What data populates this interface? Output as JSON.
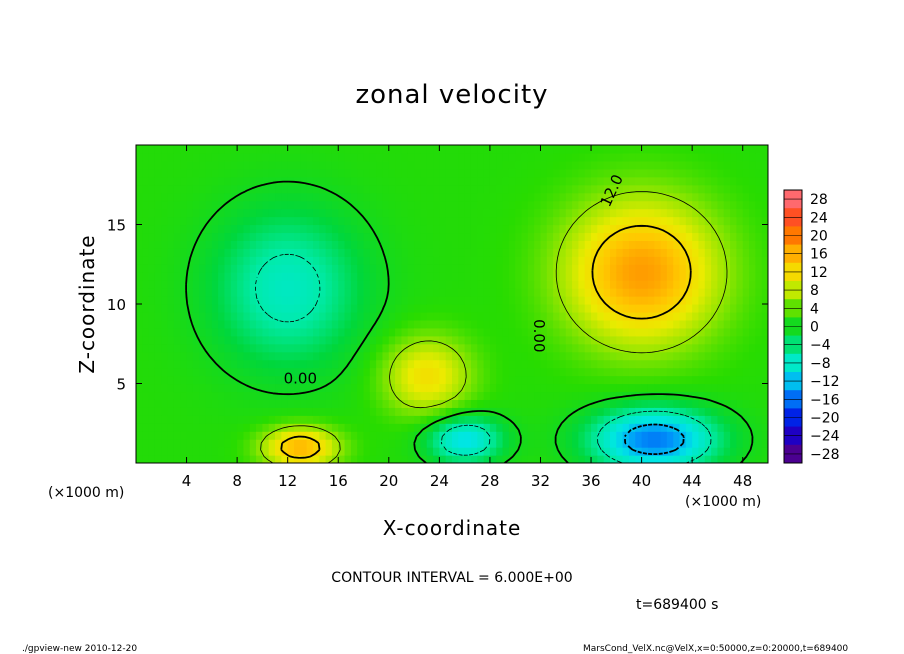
{
  "chart_data": {
    "type": "heatmap",
    "title": "zonal velocity",
    "xlabel": "X-coordinate",
    "ylabel": "Z-coordinate",
    "x_unit": "(×1000 m)",
    "y_unit": "(×1000 m)",
    "xlim": [
      0,
      50
    ],
    "ylim": [
      0,
      20
    ],
    "x_ticks": [
      4,
      8,
      12,
      16,
      20,
      24,
      28,
      32,
      36,
      40,
      44,
      48
    ],
    "y_ticks": [
      5,
      10,
      15
    ],
    "colorbar": {
      "ticks": [
        28,
        24,
        20,
        16,
        12,
        8,
        4,
        0,
        -4,
        -8,
        -12,
        -16,
        -20,
        -24,
        -28
      ],
      "tick_labels": [
        "28",
        "24",
        "20",
        "16",
        "12",
        "8",
        "4",
        "0",
        "−4",
        "−8",
        "−12",
        "−16",
        "−20",
        "−24",
        "−28"
      ],
      "range": [
        -30,
        30
      ]
    },
    "contour_labels": [
      {
        "text": "0.00",
        "x": 13.0,
        "z": 5.0
      },
      {
        "text": "0.00",
        "x": 31.5,
        "z": 8.0
      },
      {
        "text": "12.0",
        "x": 38.0,
        "z": 17.0
      }
    ],
    "contour_interval_text": "CONTOUR INTERVAL = 6.000E+00",
    "time_text": "t=689400 s",
    "features": [
      {
        "label": "positive jet",
        "x": 40,
        "z": 12,
        "value": 16
      },
      {
        "label": "positive bump",
        "x": 23,
        "z": 5.5,
        "value": 10
      },
      {
        "label": "negative core",
        "x": 41,
        "z": 1.5,
        "value": -17
      },
      {
        "label": "negative region",
        "x": 12,
        "z": 11,
        "value": -9
      },
      {
        "label": "negative lobe",
        "x": 26,
        "z": 1.5,
        "value": -12
      },
      {
        "label": "surface max",
        "x": 13,
        "z": 1.0,
        "value": 14
      }
    ]
  },
  "footer": {
    "left": "./gpview-new  2010-12-20",
    "right": "MarsCond_VelX.nc@VelX,x=0:50000,z=0:20000,t=689400"
  }
}
